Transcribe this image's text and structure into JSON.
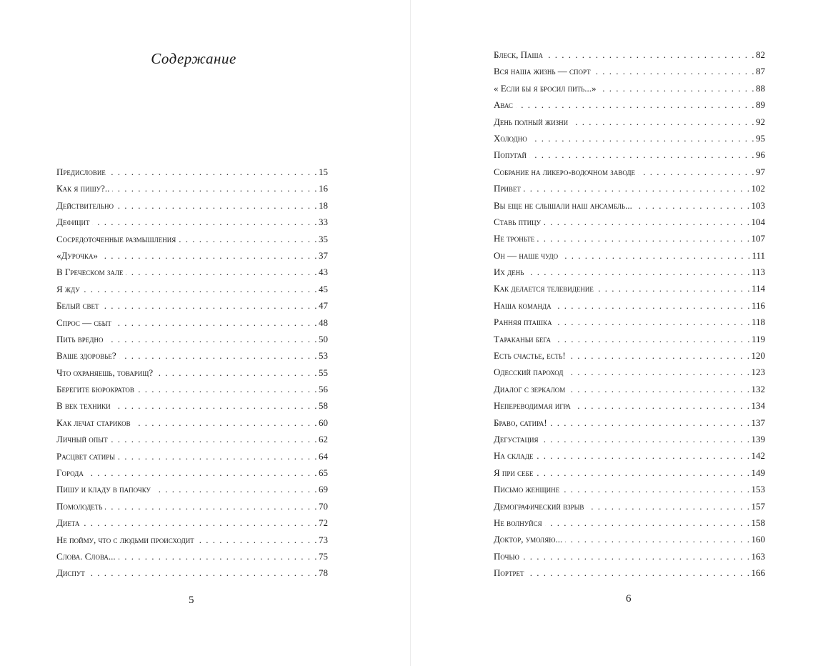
{
  "left_page": {
    "title": "Содержание",
    "page_number": "5",
    "entries": [
      {
        "title": "Предисловие",
        "page": "15"
      },
      {
        "title": "Как я пишу?..",
        "page": "16"
      },
      {
        "title": "Действительно",
        "page": "18"
      },
      {
        "title": "Дефицит",
        "page": "33"
      },
      {
        "title": "Сосредоточенные размышления",
        "page": "35"
      },
      {
        "title": "«Дурочка»",
        "page": "37"
      },
      {
        "title": "В Греческом зале",
        "page": "43"
      },
      {
        "title": "Я жду",
        "page": "45"
      },
      {
        "title": "Белый свет",
        "page": "47"
      },
      {
        "title": "Спрос — сбыт",
        "page": "48"
      },
      {
        "title": "Пить вредно",
        "page": "50"
      },
      {
        "title": "Ваше здоровье?",
        "page": "53"
      },
      {
        "title": "Что охраняешь, товарищ?",
        "page": "55"
      },
      {
        "title": "Берегите бюрократов",
        "page": "56"
      },
      {
        "title": "В век техники",
        "page": "58"
      },
      {
        "title": "Как лечат стариков",
        "page": "60"
      },
      {
        "title": "Личный опыт",
        "page": "62"
      },
      {
        "title": "Расцвет сатиры",
        "page": "64"
      },
      {
        "title": "Города",
        "page": "65"
      },
      {
        "title": "Пишу и кладу в папочку",
        "page": "69"
      },
      {
        "title": "Помолодеть",
        "page": "70"
      },
      {
        "title": "Диета",
        "page": "72"
      },
      {
        "title": "Не пойму, что с людьми происходит",
        "page": "73"
      },
      {
        "title": "Слова. Слова...",
        "page": "75"
      },
      {
        "title": "Диспут",
        "page": "78"
      }
    ]
  },
  "right_page": {
    "page_number": "6",
    "entries": [
      {
        "title": "Блеск, Паша",
        "page": "82"
      },
      {
        "title": "Вся наша жизнь — спорт",
        "page": "87"
      },
      {
        "title": "« Если бы я бросил пить...»",
        "page": "88"
      },
      {
        "title": "Авас",
        "page": "89"
      },
      {
        "title": "День полный жизни",
        "page": "92"
      },
      {
        "title": "Холодно",
        "page": "95"
      },
      {
        "title": "Попугай",
        "page": "96"
      },
      {
        "title": "Собрание на ликеро-водочном заводе",
        "page": "97"
      },
      {
        "title": "Привет",
        "page": "102"
      },
      {
        "title": "Вы еще не слышали наш ансамбль...",
        "page": "103"
      },
      {
        "title": "Ставь птицу",
        "page": "104"
      },
      {
        "title": "Не троньте",
        "page": "107"
      },
      {
        "title": "Он — наше чудо",
        "page": "111"
      },
      {
        "title": "Их день",
        "page": "113"
      },
      {
        "title": "Как делается телевидение",
        "page": "114"
      },
      {
        "title": "Наша команда",
        "page": "116"
      },
      {
        "title": "Ранняя пташка",
        "page": "118"
      },
      {
        "title": "Тараканьи бега",
        "page": "119"
      },
      {
        "title": "Есть счастье, есть!",
        "page": "120"
      },
      {
        "title": "Одесский пароход",
        "page": "123"
      },
      {
        "title": "Диалог с зеркалом",
        "page": "132"
      },
      {
        "title": "Непереводимая игра",
        "page": "134"
      },
      {
        "title": "Браво, сатира!",
        "page": "137"
      },
      {
        "title": "Дегустация",
        "page": "139"
      },
      {
        "title": "На складе",
        "page": "142"
      },
      {
        "title": "Я при себе",
        "page": "149"
      },
      {
        "title": "Письмо женщине",
        "page": "153"
      },
      {
        "title": "Демографический взрыв",
        "page": "157"
      },
      {
        "title": "Не волнуйся",
        "page": "158"
      },
      {
        "title": "Доктор, умоляю...",
        "page": "160"
      },
      {
        "title": "Почью",
        "page": "163"
      },
      {
        "title": "Портрет",
        "page": "166"
      }
    ]
  }
}
